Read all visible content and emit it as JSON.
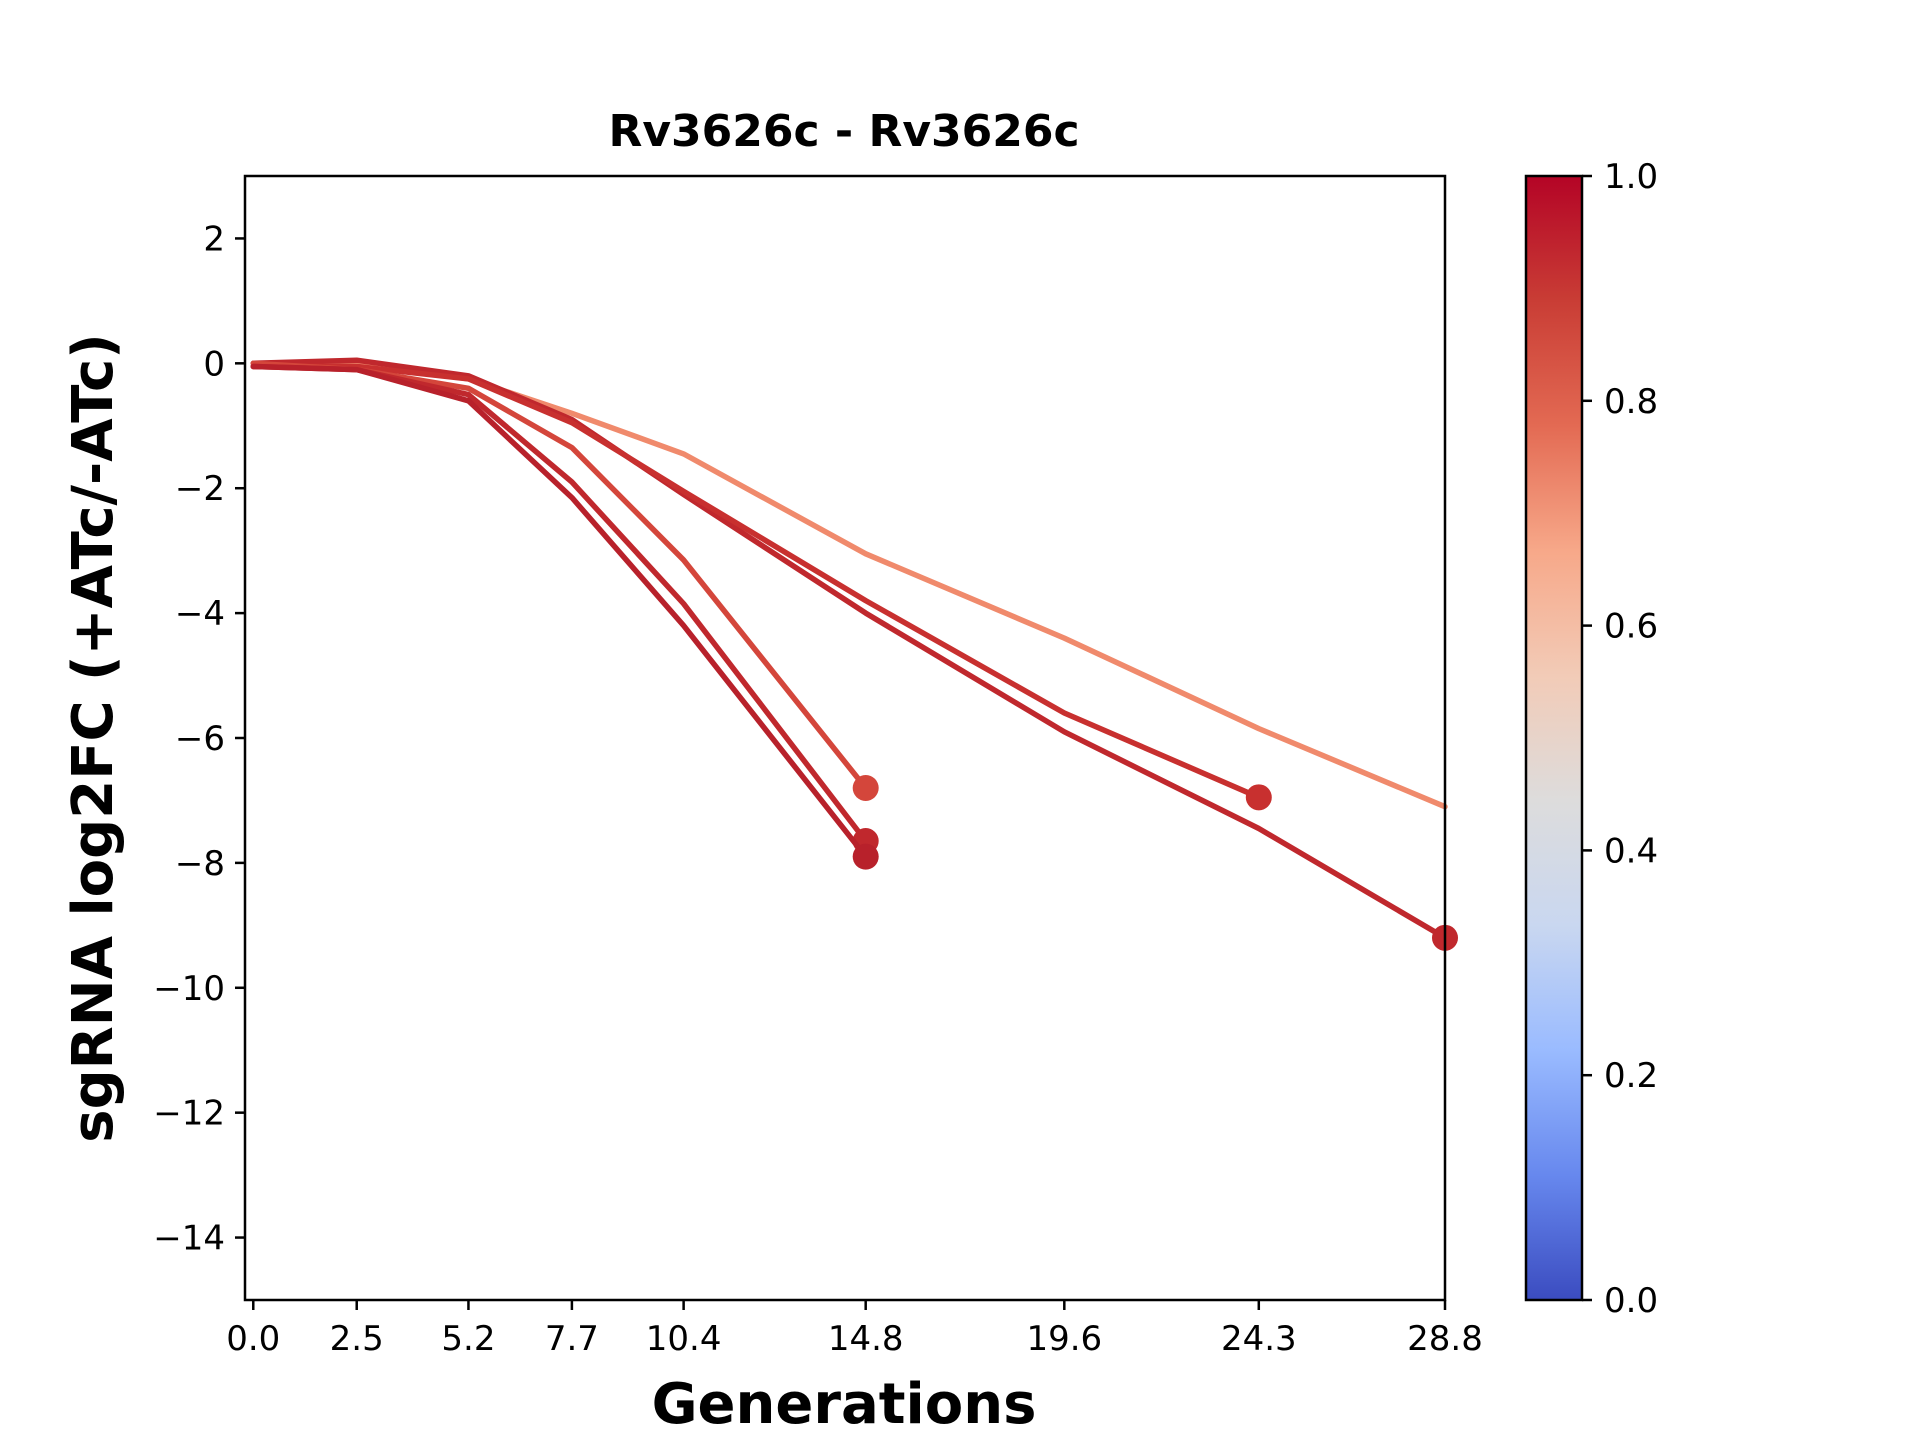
{
  "chart_data": {
    "type": "line",
    "title": "Rv3626c - Rv3626c",
    "xlabel": "Generations",
    "ylabel": "sgRNA log2FC (+ATc/-ATc)",
    "x_ticks": [
      "0.0",
      "2.5",
      "5.2",
      "7.7",
      "10.4",
      "14.8",
      "19.6",
      "24.3",
      "28.8"
    ],
    "x_tick_values": [
      0.0,
      2.5,
      5.2,
      7.7,
      10.4,
      14.8,
      19.6,
      24.3,
      28.8
    ],
    "y_ticks": [
      2,
      0,
      -2,
      -4,
      -6,
      -8,
      -10,
      -12,
      -14
    ],
    "y_tick_labels": [
      "2",
      "0",
      "−2",
      "−4",
      "−6",
      "−8",
      "−10",
      "−12",
      "−14"
    ],
    "xlim": [
      -0.2,
      28.8
    ],
    "ylim": [
      -15,
      3
    ],
    "colorbar": {
      "range": [
        0.0,
        1.0
      ],
      "ticks": [
        "0.0",
        "0.2",
        "0.4",
        "0.6",
        "0.8",
        "1.0"
      ],
      "colormap": "coolwarm",
      "stops": [
        "#3b4cc0",
        "#6788ee",
        "#9abbff",
        "#c9d7f0",
        "#dddcdc",
        "#f2cbb7",
        "#f7a889",
        "#e36a53",
        "#c93d35",
        "#b40426"
      ]
    },
    "series": [
      {
        "color": "#f08a6c",
        "x": [
          0.0,
          2.5,
          5.2,
          7.7,
          10.4,
          14.8,
          19.6,
          24.3,
          28.8
        ],
        "y": [
          -0.05,
          0.0,
          -0.25,
          -0.8,
          -1.45,
          -3.05,
          -4.4,
          -5.85,
          -7.1
        ],
        "end_marker": false
      },
      {
        "color": "#c0282d",
        "x": [
          0.0,
          2.5,
          5.2,
          7.7,
          10.4,
          14.8,
          19.6,
          24.3,
          28.8
        ],
        "y": [
          0.0,
          0.05,
          -0.2,
          -0.9,
          -2.1,
          -4.0,
          -5.9,
          -7.45,
          -9.2
        ],
        "end_marker": true
      },
      {
        "color": "#c8302f",
        "x": [
          0.0,
          2.5,
          5.2,
          7.7,
          10.4,
          14.8,
          19.6,
          24.3
        ],
        "y": [
          -0.05,
          -0.05,
          -0.25,
          -0.95,
          -2.05,
          -3.8,
          -5.6,
          -6.95
        ],
        "end_marker": true
      },
      {
        "color": "#d4463b",
        "x": [
          0.0,
          2.5,
          5.2,
          7.7,
          10.4,
          14.8
        ],
        "y": [
          0.0,
          -0.1,
          -0.4,
          -1.35,
          -3.15,
          -6.8
        ],
        "end_marker": true
      },
      {
        "color": "#c0282d",
        "x": [
          0.0,
          2.5,
          5.2,
          7.7,
          10.4,
          14.8
        ],
        "y": [
          -0.05,
          -0.1,
          -0.5,
          -1.9,
          -3.85,
          -7.65
        ],
        "end_marker": true
      },
      {
        "color": "#b8212b",
        "x": [
          0.0,
          2.5,
          5.2,
          7.7,
          10.4,
          14.8
        ],
        "y": [
          -0.05,
          -0.1,
          -0.6,
          -2.15,
          -4.2,
          -7.9
        ],
        "end_marker": true
      }
    ]
  }
}
